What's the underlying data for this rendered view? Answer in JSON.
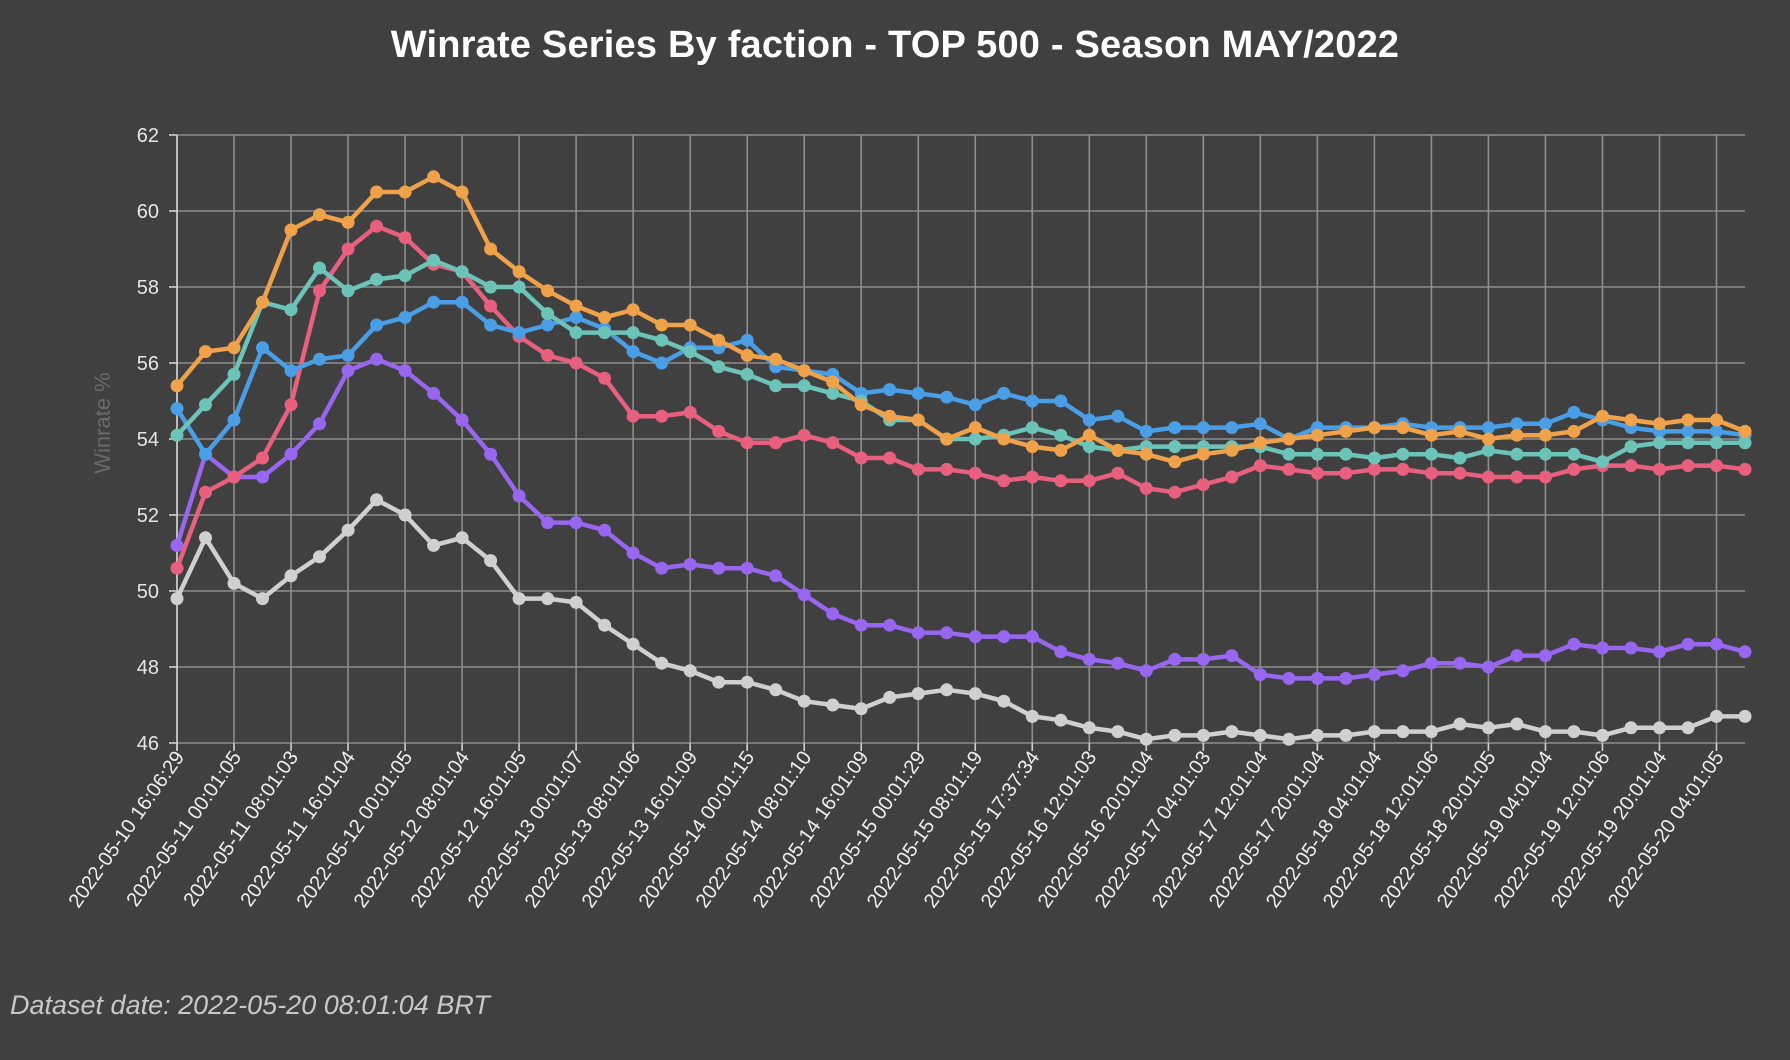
{
  "chart_data": {
    "type": "line",
    "title": "Winrate Series By faction - TOP 500 - Season MAY/2022",
    "ylabel": "Winrate %",
    "xlabel": "",
    "ylim": [
      46,
      62
    ],
    "yticks": [
      46,
      48,
      50,
      52,
      54,
      56,
      58,
      60,
      62
    ],
    "grid": true,
    "xtick_labels": [
      "2022-05-10 16:06:29",
      "2022-05-11 00:01:05",
      "2022-05-11 08:01:03",
      "2022-05-11 16:01:04",
      "2022-05-12 00:01:05",
      "2022-05-12 08:01:04",
      "2022-05-12 16:01:05",
      "2022-05-13 00:01:07",
      "2022-05-13 08:01:06",
      "2022-05-13 16:01:09",
      "2022-05-14 00:01:15",
      "2022-05-14 08:01:10",
      "2022-05-14 16:01:09",
      "2022-05-15 00:01:29",
      "2022-05-15 08:01:19",
      "2022-05-15 17:37:34",
      "2022-05-16 12:01:03",
      "2022-05-16 20:01:04",
      "2022-05-17 04:01:03",
      "2022-05-17 12:01:04",
      "2022-05-17 20:01:04",
      "2022-05-18 04:01:04",
      "2022-05-18 12:01:06",
      "2022-05-18 20:01:05",
      "2022-05-19 04:01:04",
      "2022-05-19 12:01:06",
      "2022-05-19 20:01:04",
      "2022-05-20 04:01:05"
    ],
    "series": [
      {
        "name": "orange",
        "color": "#f0a24a",
        "values": [
          55.4,
          56.3,
          56.4,
          57.6,
          59.5,
          59.9,
          59.7,
          60.5,
          60.5,
          60.9,
          60.5,
          59.0,
          58.4,
          57.9,
          57.5,
          57.2,
          57.4,
          57.0,
          57.0,
          56.6,
          56.2,
          56.1,
          55.8,
          55.5,
          54.9,
          54.6,
          54.5,
          54.0,
          54.3,
          54.0,
          53.8,
          53.7,
          54.1,
          53.7,
          53.6,
          53.4,
          53.6,
          53.7,
          53.9,
          54.0,
          54.1,
          54.2,
          54.3,
          54.3,
          54.1,
          54.2,
          54.0,
          54.1,
          54.1,
          54.2,
          54.6,
          54.5,
          54.4,
          54.5,
          54.5,
          54.2
        ]
      },
      {
        "name": "teal",
        "color": "#6cc4b8",
        "values": [
          54.1,
          54.9,
          55.7,
          57.6,
          57.4,
          58.5,
          57.9,
          58.2,
          58.3,
          58.7,
          58.4,
          58.0,
          58.0,
          57.3,
          56.8,
          56.8,
          56.8,
          56.6,
          56.3,
          55.9,
          55.7,
          55.4,
          55.4,
          55.2,
          55.0,
          54.5,
          54.5,
          54.0,
          54.0,
          54.1,
          54.3,
          54.1,
          53.8,
          53.7,
          53.8,
          53.8,
          53.8,
          53.8,
          53.8,
          53.6,
          53.6,
          53.6,
          53.5,
          53.6,
          53.6,
          53.5,
          53.7,
          53.6,
          53.6,
          53.6,
          53.4,
          53.8,
          53.9,
          53.9,
          53.9,
          53.9
        ]
      },
      {
        "name": "blue",
        "color": "#4a9ee6",
        "values": [
          54.8,
          53.6,
          54.5,
          56.4,
          55.8,
          56.1,
          56.2,
          57.0,
          57.2,
          57.6,
          57.6,
          57.0,
          56.8,
          57.0,
          57.2,
          56.9,
          56.3,
          56.0,
          56.4,
          56.4,
          56.6,
          55.9,
          55.8,
          55.7,
          55.2,
          55.3,
          55.2,
          55.1,
          54.9,
          55.2,
          55.0,
          55.0,
          54.5,
          54.6,
          54.2,
          54.3,
          54.3,
          54.3,
          54.4,
          54.0,
          54.3,
          54.3,
          54.3,
          54.4,
          54.3,
          54.3,
          54.3,
          54.4,
          54.4,
          54.7,
          54.5,
          54.3,
          54.2,
          54.2,
          54.2,
          54.1
        ]
      },
      {
        "name": "pink",
        "color": "#e8607e",
        "values": [
          50.6,
          52.6,
          53.0,
          53.5,
          54.9,
          57.9,
          59.0,
          59.6,
          59.3,
          58.6,
          58.4,
          57.5,
          56.7,
          56.2,
          56.0,
          55.6,
          54.6,
          54.6,
          54.7,
          54.2,
          53.9,
          53.9,
          54.1,
          53.9,
          53.5,
          53.5,
          53.2,
          53.2,
          53.1,
          52.9,
          53.0,
          52.9,
          52.9,
          53.1,
          52.7,
          52.6,
          52.8,
          53.0,
          53.3,
          53.2,
          53.1,
          53.1,
          53.2,
          53.2,
          53.1,
          53.1,
          53.0,
          53.0,
          53.0,
          53.2,
          53.3,
          53.3,
          53.2,
          53.3,
          53.3,
          53.2
        ]
      },
      {
        "name": "purple",
        "color": "#9966f0",
        "values": [
          51.2,
          53.6,
          53.0,
          53.0,
          53.6,
          54.4,
          55.8,
          56.1,
          55.8,
          55.2,
          54.5,
          53.6,
          52.5,
          51.8,
          51.8,
          51.6,
          51.0,
          50.6,
          50.7,
          50.6,
          50.6,
          50.4,
          49.9,
          49.4,
          49.1,
          49.1,
          48.9,
          48.9,
          48.8,
          48.8,
          48.8,
          48.4,
          48.2,
          48.1,
          47.9,
          48.2,
          48.2,
          48.3,
          47.8,
          47.7,
          47.7,
          47.7,
          47.8,
          47.9,
          48.1,
          48.1,
          48.0,
          48.3,
          48.3,
          48.6,
          48.5,
          48.5,
          48.4,
          48.6,
          48.6,
          48.4
        ]
      },
      {
        "name": "gray",
        "color": "#d0d0d0",
        "values": [
          49.8,
          51.4,
          50.2,
          49.8,
          50.4,
          50.9,
          51.6,
          52.4,
          52.0,
          51.2,
          51.4,
          50.8,
          49.8,
          49.8,
          49.7,
          49.1,
          48.6,
          48.1,
          47.9,
          47.6,
          47.6,
          47.4,
          47.1,
          47.0,
          46.9,
          47.2,
          47.3,
          47.4,
          47.3,
          47.1,
          46.7,
          46.6,
          46.4,
          46.3,
          46.1,
          46.2,
          46.2,
          46.3,
          46.2,
          46.1,
          46.2,
          46.2,
          46.3,
          46.3,
          46.3,
          46.5,
          46.4,
          46.5,
          46.3,
          46.3,
          46.2,
          46.4,
          46.4,
          46.4,
          46.7,
          46.7
        ]
      }
    ]
  },
  "footer": "Dataset date: 2022-05-20 08:01:04 BRT"
}
